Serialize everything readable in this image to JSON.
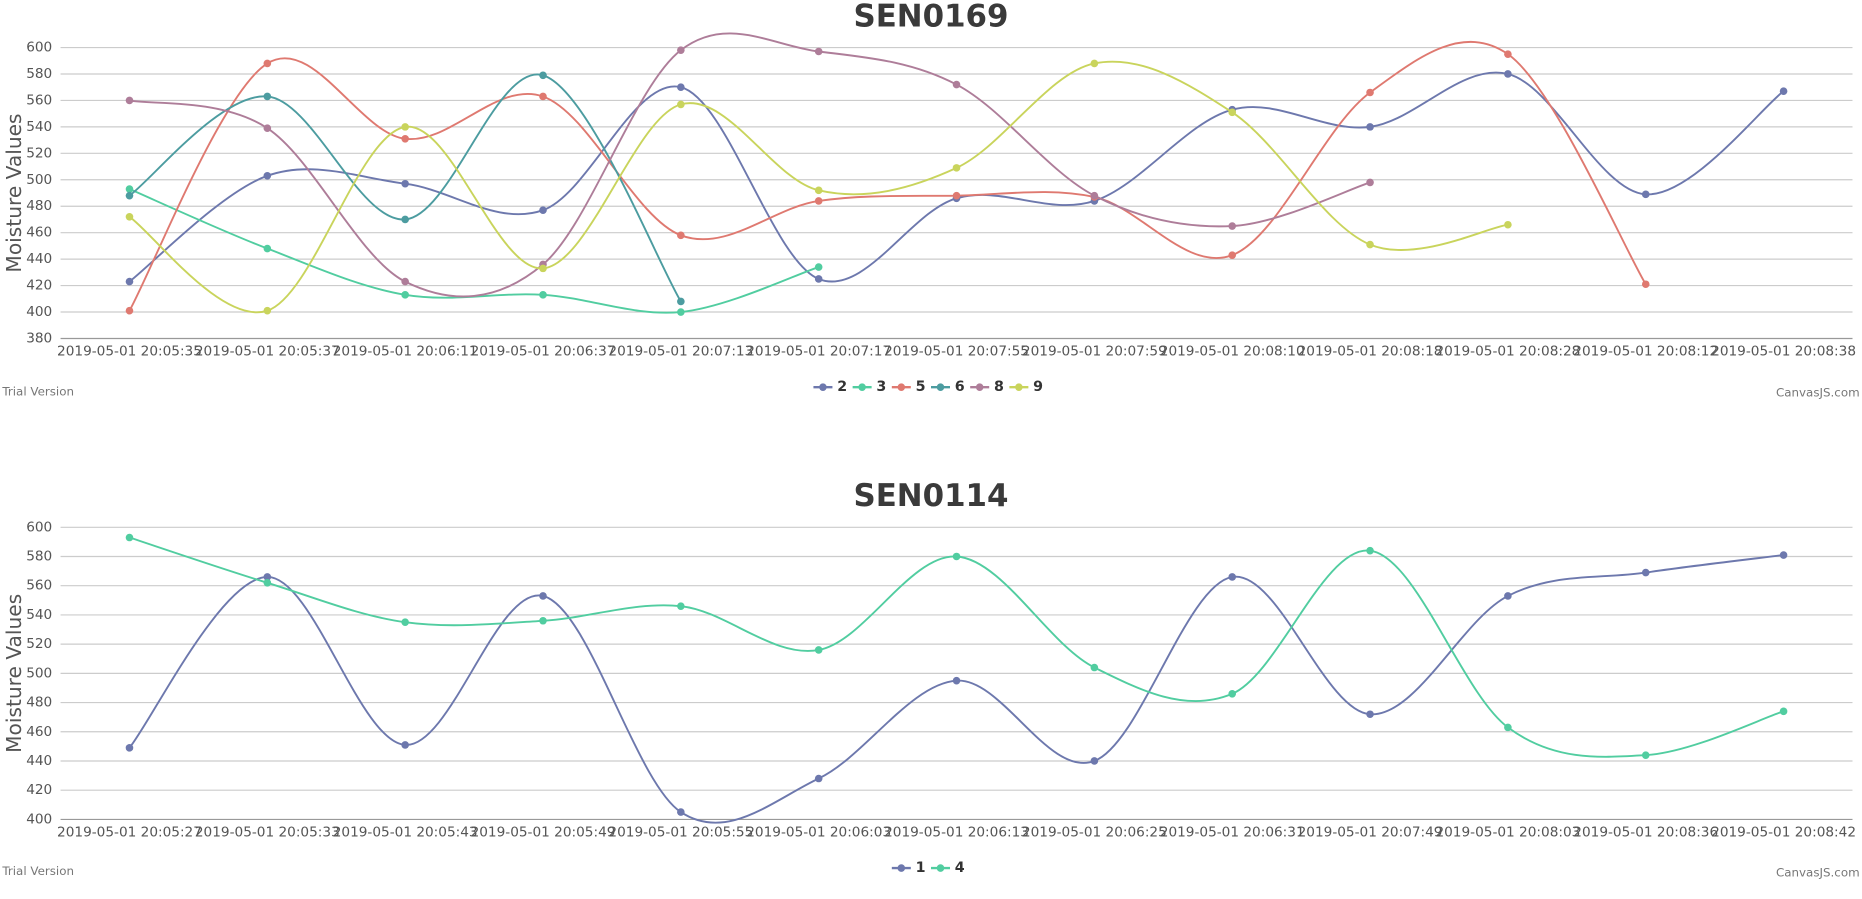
{
  "chart_data": [
    {
      "type": "line",
      "title": "SEN0169",
      "y_axis_label": "Moisture Values",
      "categories": [
        "2019-05-01 20:05:35",
        "2019-05-01 20:05:37",
        "2019-05-01 20:06:11",
        "2019-05-01 20:06:37",
        "2019-05-01 20:07:13",
        "2019-05-01 20:07:17",
        "2019-05-01 20:07:55",
        "2019-05-01 20:07:59",
        "2019-05-01 20:08:10",
        "2019-05-01 20:08:18",
        "2019-05-01 20:08:28",
        "2019-05-01 20:08:12",
        "2019-05-01 20:08:38"
      ],
      "series": [
        {
          "name": "2",
          "color": "#6D78AD",
          "values": [
            423,
            503,
            497,
            477,
            570,
            425,
            486,
            484,
            553,
            540,
            580,
            489,
            567
          ]
        },
        {
          "name": "3",
          "color": "#51CDA0",
          "values": [
            493,
            448,
            413,
            413,
            400,
            434,
            null,
            null,
            null,
            null,
            null,
            null,
            null
          ]
        },
        {
          "name": "5",
          "color": "#DF7970",
          "values": [
            401,
            588,
            531,
            563,
            458,
            484,
            488,
            487,
            443,
            566,
            595,
            421,
            null
          ]
        },
        {
          "name": "6",
          "color": "#4C9CA0",
          "values": [
            488,
            563,
            470,
            579,
            408,
            null,
            null,
            null,
            null,
            null,
            null,
            null,
            null
          ]
        },
        {
          "name": "8",
          "color": "#AE7D99",
          "values": [
            560,
            539,
            423,
            436,
            598,
            597,
            572,
            488,
            465,
            498,
            null,
            null,
            null
          ]
        },
        {
          "name": "9",
          "color": "#C9D45C",
          "values": [
            472,
            401,
            540,
            433,
            557,
            492,
            509,
            588,
            551,
            451,
            466,
            null,
            null
          ]
        }
      ],
      "ylim": [
        380,
        600
      ],
      "yticks": [
        380,
        400,
        420,
        440,
        460,
        480,
        500,
        520,
        540,
        560,
        580,
        600
      ],
      "grid": true,
      "credit_left": "Trial Version",
      "credit_right": "CanvasJS.com"
    },
    {
      "type": "line",
      "title": "SEN0114",
      "y_axis_label": "Moisture Values",
      "categories": [
        "2019-05-01 20:05:27",
        "2019-05-01 20:05:33",
        "2019-05-01 20:05:43",
        "2019-05-01 20:05:49",
        "2019-05-01 20:05:55",
        "2019-05-01 20:06:03",
        "2019-05-01 20:06:13",
        "2019-05-01 20:06:25",
        "2019-05-01 20:06:31",
        "2019-05-01 20:07:49",
        "2019-05-01 20:08:03",
        "2019-05-01 20:08:36",
        "2019-05-01 20:08:42"
      ],
      "series": [
        {
          "name": "1",
          "color": "#6D78AD",
          "values": [
            449,
            566,
            451,
            553,
            405,
            428,
            495,
            440,
            566,
            472,
            553,
            569,
            581
          ]
        },
        {
          "name": "4",
          "color": "#51CDA0",
          "values": [
            593,
            562,
            535,
            536,
            546,
            516,
            580,
            504,
            486,
            584,
            463,
            444,
            474
          ]
        }
      ],
      "ylim": [
        400,
        600
      ],
      "yticks": [
        400,
        420,
        440,
        460,
        480,
        500,
        520,
        540,
        560,
        580,
        600
      ],
      "grid": true,
      "credit_left": "Trial Version",
      "credit_right": "CanvasJS.com"
    }
  ]
}
